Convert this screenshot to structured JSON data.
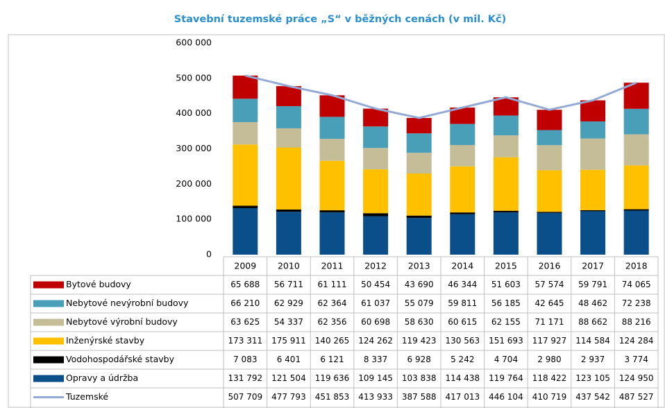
{
  "chart_data": {
    "type": "bar",
    "stacked": true,
    "title": "Stavební tuzemské práce „S“ v běžných cenách (v mil. Kč)",
    "categories": [
      "2009",
      "2010",
      "2011",
      "2012",
      "2013",
      "2014",
      "2015",
      "2016",
      "2017",
      "2018"
    ],
    "ylim": [
      0,
      600000
    ],
    "yticks": [
      {
        "value": 0,
        "label": "0"
      },
      {
        "value": 100000,
        "label": "100 000"
      },
      {
        "value": 200000,
        "label": "200 000"
      },
      {
        "value": 300000,
        "label": "300 000"
      },
      {
        "value": 400000,
        "label": "400 000"
      },
      {
        "value": 500000,
        "label": "500 000"
      },
      {
        "value": 600000,
        "label": "600 000"
      }
    ],
    "series": [
      {
        "name": "Bytové budovy",
        "color": "#c00000",
        "values": [
          65688,
          56711,
          61111,
          50454,
          43690,
          46344,
          51603,
          57574,
          59791,
          74065
        ],
        "value_labels": [
          "65 688",
          "56 711",
          "61 111",
          "50 454",
          "43 690",
          "46 344",
          "51 603",
          "57 574",
          "59 791",
          "74 065"
        ]
      },
      {
        "name": "Nebytové nevýrobní budovy",
        "color": "#4a9fb8",
        "values": [
          66210,
          62929,
          62364,
          61037,
          55079,
          59811,
          56185,
          42645,
          48462,
          72238
        ],
        "value_labels": [
          "66 210",
          "62 929",
          "62 364",
          "61 037",
          "55 079",
          "59 811",
          "56 185",
          "42 645",
          "48 462",
          "72 238"
        ]
      },
      {
        "name": "Nebytové výrobní budovy",
        "color": "#c4bd97",
        "values": [
          63625,
          54337,
          62356,
          60698,
          58630,
          60615,
          62155,
          71171,
          88662,
          88216
        ],
        "value_labels": [
          "63 625",
          "54 337",
          "62 356",
          "60 698",
          "58 630",
          "60 615",
          "62 155",
          "71 171",
          "88 662",
          "88 216"
        ]
      },
      {
        "name": "Inženýrské stavby",
        "color": "#ffc000",
        "values": [
          173311,
          175911,
          140265,
          124262,
          119423,
          130563,
          151693,
          117927,
          114584,
          124284
        ],
        "value_labels": [
          "173 311",
          "175 911",
          "140 265",
          "124 262",
          "119 423",
          "130 563",
          "151 693",
          "117 927",
          "114 584",
          "124 284"
        ]
      },
      {
        "name": "Vodohospodářské stavby",
        "color": "#000000",
        "values": [
          7083,
          6401,
          6121,
          8337,
          6928,
          5242,
          4704,
          2980,
          2937,
          3774
        ],
        "value_labels": [
          "7 083",
          "6 401",
          "6 121",
          "8 337",
          "6 928",
          "5 242",
          "4 704",
          "2 980",
          "2 937",
          "3 774"
        ]
      },
      {
        "name": "Opravy a údržba",
        "color": "#0b4f8a",
        "values": [
          131792,
          121504,
          119636,
          109145,
          103838,
          114438,
          119764,
          118422,
          123105,
          124950
        ],
        "value_labels": [
          "131 792",
          "121 504",
          "119 636",
          "109 145",
          "103 838",
          "114 438",
          "119 764",
          "118 422",
          "123 105",
          "124 950"
        ]
      },
      {
        "name": "Tuzemské",
        "color": "#94aad6",
        "type": "line",
        "values": [
          507709,
          477793,
          451853,
          413933,
          387588,
          417013,
          446104,
          410719,
          437542,
          487527
        ],
        "value_labels": [
          "507 709",
          "477 793",
          "451 853",
          "413 933",
          "387 588",
          "417 013",
          "446 104",
          "410 719",
          "437 542",
          "487 527"
        ]
      }
    ]
  }
}
